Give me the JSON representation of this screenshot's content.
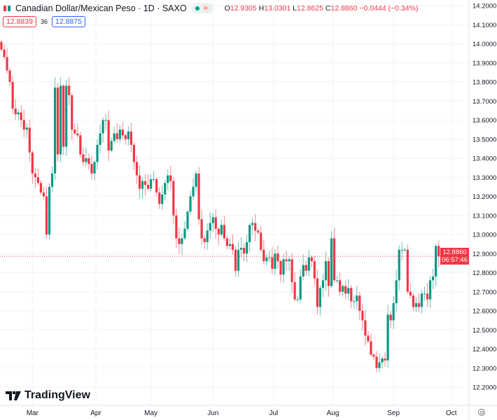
{
  "header": {
    "title": "Canadian Dollar/Mexican Peso · 1D · SAXO",
    "approx_symbol": "≈",
    "open_label": "O",
    "open": "12.9305",
    "high_label": "H",
    "high": "13.0301",
    "low_label": "L",
    "low": "12.8625",
    "close_label": "C",
    "close": "12.8860",
    "change": "−0.0444 (−0.34%)",
    "bid": "12.8839",
    "spread": "36",
    "ask": "12.8875"
  },
  "price_tag": {
    "price": "12.8860",
    "countdown": "06:57:46"
  },
  "brand": "TradingView",
  "colors": {
    "up": "#089981",
    "down": "#f23645",
    "grid": "#f0f3fa",
    "axis_text": "#131722"
  },
  "chart_data": {
    "type": "candlestick",
    "title": "Canadian Dollar/Mexican Peso · 1D · SAXO",
    "ylim": [
      12.2,
      14.2
    ],
    "yticks": [
      "14.2000",
      "14.1000",
      "14.0000",
      "13.9000",
      "13.8000",
      "13.7000",
      "13.6000",
      "13.5000",
      "13.4000",
      "13.3000",
      "13.2000",
      "13.1000",
      "13.0000",
      "12.9000",
      "12.8000",
      "12.7000",
      "12.6000",
      "12.5000",
      "12.4000",
      "12.3000",
      "12.2000"
    ],
    "x_labels": [
      {
        "label": "Mar",
        "index": 11
      },
      {
        "label": "Apr",
        "index": 33.5
      },
      {
        "label": "May",
        "index": 53
      },
      {
        "label": "Jun",
        "index": 75
      },
      {
        "label": "Jul",
        "index": 96.5
      },
      {
        "label": "Aug",
        "index": 117.5
      },
      {
        "label": "Sep",
        "index": 139
      },
      {
        "label": "Oct",
        "index": 159.5
      }
    ],
    "first_open": 14.01,
    "closes": [
      13.97,
      13.93,
      13.86,
      13.8,
      13.66,
      13.63,
      13.64,
      13.6,
      13.55,
      13.56,
      13.43,
      13.32,
      13.3,
      13.27,
      13.22,
      13.2,
      13.0,
      13.25,
      13.32,
      13.77,
      13.42,
      13.78,
      13.46,
      13.78,
      13.73,
      13.55,
      13.53,
      13.52,
      13.42,
      13.38,
      13.4,
      13.37,
      13.32,
      13.38,
      13.47,
      13.53,
      13.6,
      13.6,
      13.44,
      13.49,
      13.53,
      13.5,
      13.55,
      13.52,
      13.5,
      13.54,
      13.47,
      13.38,
      13.31,
      13.24,
      13.28,
      13.26,
      13.24,
      13.29,
      13.29,
      13.22,
      13.16,
      13.21,
      13.27,
      13.31,
      13.28,
      13.1,
      12.98,
      12.95,
      12.98,
      13.03,
      13.12,
      13.2,
      13.25,
      13.32,
      13.08,
      12.98,
      12.96,
      13.02,
      13.06,
      13.09,
      13.03,
      13.0,
      13.05,
      12.98,
      12.94,
      12.95,
      12.92,
      12.81,
      12.92,
      12.93,
      12.9,
      12.96,
      13.05,
      13.06,
      13.02,
      13.01,
      12.92,
      12.86,
      12.88,
      12.88,
      12.82,
      12.9,
      12.86,
      12.79,
      12.87,
      12.86,
      12.87,
      12.75,
      12.66,
      12.66,
      12.78,
      12.84,
      12.81,
      12.88,
      12.86,
      12.77,
      12.62,
      12.72,
      12.76,
      12.86,
      12.73,
      12.98,
      12.76,
      12.76,
      12.7,
      12.73,
      12.69,
      12.72,
      12.65,
      12.65,
      12.68,
      12.6,
      12.55,
      12.47,
      12.44,
      12.37,
      12.36,
      12.3,
      12.33,
      12.35,
      12.34,
      12.58,
      12.55,
      12.64,
      12.76,
      12.92,
      12.92,
      12.92,
      12.7,
      12.68,
      12.62,
      12.64,
      12.62,
      12.69,
      12.69,
      12.66,
      12.76,
      12.78,
      12.94,
      12.886
    ],
    "last_price": 12.886
  }
}
